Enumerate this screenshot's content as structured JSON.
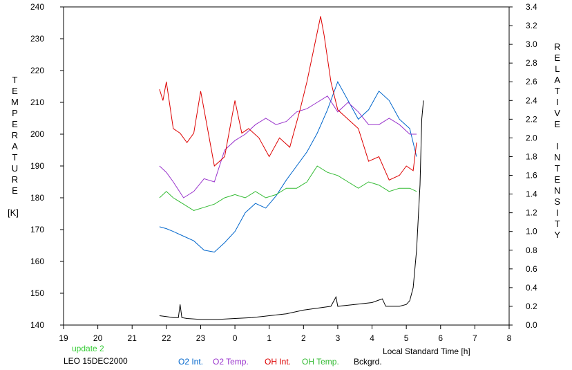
{
  "chart_data": {
    "type": "line",
    "xlabel": "Local Standard Time [h]",
    "ylabel_left": "TEMPERATURE",
    "ylabel_left_unit": "[K]",
    "ylabel_right": "RELATIVE INTENSITY",
    "x_ticks": [
      "19",
      "20",
      "21",
      "22",
      "23",
      "0",
      "1",
      "2",
      "3",
      "4",
      "5",
      "6",
      "7",
      "8"
    ],
    "xlim": [
      19,
      32
    ],
    "ylim_left": [
      140,
      240
    ],
    "ylim_right": [
      0.0,
      3.4
    ],
    "y_ticks_left": [
      "140",
      "150",
      "160",
      "170",
      "180",
      "190",
      "200",
      "210",
      "220",
      "230",
      "240"
    ],
    "y_ticks_right": [
      "0.0",
      "0.2",
      "0.4",
      "0.6",
      "0.8",
      "1.0",
      "1.2",
      "1.4",
      "1.6",
      "1.8",
      "2.0",
      "2.2",
      "2.4",
      "2.6",
      "2.8",
      "3.0",
      "3.2",
      "3.4"
    ],
    "grid": false,
    "legend_position": "bottom",
    "series": [
      {
        "name": "O2 Int.",
        "color": "#0066cc",
        "axis": "right",
        "x": [
          21.8,
          22.0,
          22.2,
          22.5,
          22.8,
          23.1,
          23.4,
          23.7,
          24.0,
          24.3,
          24.6,
          24.9,
          25.2,
          25.5,
          25.8,
          26.1,
          26.4,
          26.7,
          27.0,
          27.3,
          27.6,
          27.9,
          28.2,
          28.5,
          28.8,
          29.1,
          29.3
        ],
        "y": [
          1.05,
          1.03,
          1.0,
          0.95,
          0.9,
          0.8,
          0.78,
          0.88,
          1.0,
          1.2,
          1.3,
          1.25,
          1.38,
          1.55,
          1.7,
          1.85,
          2.05,
          2.3,
          2.6,
          2.4,
          2.2,
          2.3,
          2.5,
          2.4,
          2.2,
          2.1,
          1.8
        ]
      },
      {
        "name": "O2 Temp.",
        "color": "#9933cc",
        "axis": "left",
        "x": [
          21.8,
          22.0,
          22.2,
          22.5,
          22.8,
          23.1,
          23.4,
          23.7,
          24.0,
          24.3,
          24.6,
          24.9,
          25.2,
          25.5,
          25.8,
          26.1,
          26.4,
          26.7,
          27.0,
          27.3,
          27.6,
          27.9,
          28.2,
          28.5,
          28.8,
          29.1,
          29.3
        ],
        "y": [
          190,
          188,
          185,
          180,
          182,
          186,
          185,
          195,
          198,
          200,
          203,
          205,
          203,
          204,
          207,
          208,
          210,
          212,
          207,
          210,
          207,
          203,
          203,
          205,
          203,
          200,
          200
        ]
      },
      {
        "name": "OH Int.",
        "color": "#dd0000",
        "axis": "right",
        "x": [
          21.8,
          21.9,
          22.0,
          22.2,
          22.4,
          22.6,
          22.8,
          23.0,
          23.2,
          23.4,
          23.7,
          24.0,
          24.2,
          24.4,
          24.7,
          25.0,
          25.3,
          25.6,
          25.9,
          26.1,
          26.3,
          26.5,
          26.6,
          26.8,
          27.0,
          27.3,
          27.6,
          27.9,
          28.2,
          28.5,
          28.8,
          29.0,
          29.2,
          29.3
        ],
        "y": [
          2.52,
          2.4,
          2.6,
          2.1,
          2.05,
          1.95,
          2.05,
          2.5,
          2.1,
          1.7,
          1.8,
          2.4,
          2.05,
          2.1,
          2.0,
          1.8,
          2.0,
          1.9,
          2.3,
          2.6,
          2.95,
          3.3,
          3.1,
          2.6,
          2.3,
          2.2,
          2.1,
          1.75,
          1.8,
          1.55,
          1.6,
          1.7,
          1.65,
          1.95
        ]
      },
      {
        "name": "OH Temp.",
        "color": "#33bb33",
        "axis": "left",
        "x": [
          21.8,
          22.0,
          22.2,
          22.5,
          22.8,
          23.1,
          23.4,
          23.7,
          24.0,
          24.3,
          24.6,
          24.9,
          25.2,
          25.5,
          25.8,
          26.1,
          26.4,
          26.7,
          27.0,
          27.3,
          27.6,
          27.9,
          28.2,
          28.5,
          28.8,
          29.1,
          29.3
        ],
        "y": [
          180,
          182,
          180,
          178,
          176,
          177,
          178,
          180,
          181,
          180,
          182,
          180,
          181,
          183,
          183,
          185,
          190,
          188,
          187,
          185,
          183,
          185,
          184,
          182,
          183,
          183,
          182
        ]
      },
      {
        "name": "Bckgrd.",
        "color": "#000000",
        "axis": "right",
        "x": [
          21.8,
          22.0,
          22.2,
          22.35,
          22.4,
          22.45,
          22.6,
          23.0,
          23.5,
          24.0,
          24.5,
          25.0,
          25.5,
          26.0,
          26.4,
          26.8,
          26.95,
          27.0,
          27.5,
          28.0,
          28.3,
          28.4,
          28.8,
          29.0,
          29.1,
          29.2,
          29.3,
          29.4,
          29.45,
          29.5
        ],
        "y": [
          0.1,
          0.09,
          0.08,
          0.08,
          0.22,
          0.08,
          0.07,
          0.06,
          0.06,
          0.07,
          0.08,
          0.1,
          0.12,
          0.16,
          0.18,
          0.2,
          0.3,
          0.2,
          0.22,
          0.24,
          0.28,
          0.2,
          0.2,
          0.22,
          0.26,
          0.4,
          0.8,
          1.5,
          2.2,
          2.4
        ]
      }
    ]
  },
  "footer": {
    "status": "update 2",
    "station": "LEO 15DEC2000"
  },
  "colors": {
    "update_text": "#33cc33"
  }
}
